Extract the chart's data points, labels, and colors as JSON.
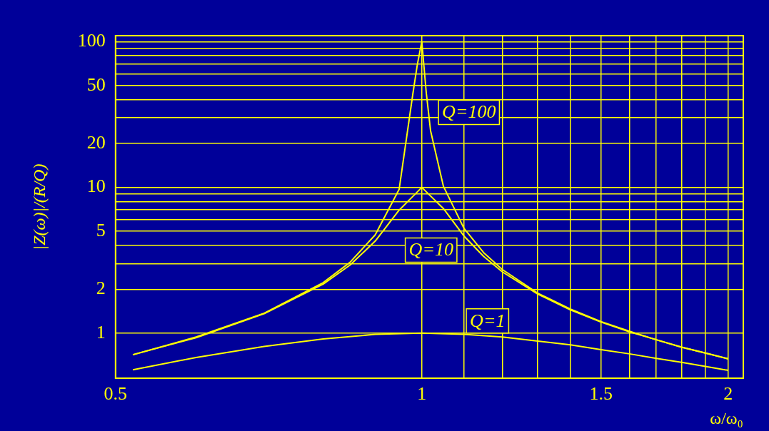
{
  "chart_data": {
    "type": "line",
    "xlabel": "ω/ω₀",
    "ylabel": "|Z(ω)|/(R/Q)",
    "log": "xy",
    "grid": true,
    "legend": false,
    "marker": "none",
    "line_style": "solid",
    "xlim": [
      0.5,
      2.07
    ],
    "ylim": [
      0.49,
      110
    ],
    "xticks": [
      0.5,
      1,
      {
        "value": 1.1,
        "label": null
      },
      {
        "value": 1.2,
        "label": null
      },
      {
        "value": 1.3,
        "label": null
      },
      {
        "value": 1.4,
        "label": null
      },
      1.5,
      {
        "value": 1.6,
        "label": null
      },
      {
        "value": 1.7,
        "label": null
      },
      {
        "value": 1.8,
        "label": null
      },
      {
        "value": 1.9,
        "label": null
      },
      2
    ],
    "yticks": [
      1,
      2,
      {
        "value": 3,
        "label": null
      },
      {
        "value": 4,
        "label": null
      },
      5,
      {
        "value": 6,
        "label": null
      },
      {
        "value": 7,
        "label": null
      },
      {
        "value": 8,
        "label": null
      },
      {
        "value": 9,
        "label": null
      },
      10,
      20,
      {
        "value": 30,
        "label": null
      },
      {
        "value": 40,
        "label": null
      },
      50,
      {
        "value": 60,
        "label": null
      },
      {
        "value": 70,
        "label": null
      },
      {
        "value": 80,
        "label": null
      },
      {
        "value": 90,
        "label": null
      },
      100
    ],
    "series": [
      {
        "name": "Q=1",
        "color": "#ffff00",
        "x": [
          0.52,
          0.6,
          0.7,
          0.8,
          0.9,
          1,
          1.1,
          1.2,
          1.3,
          1.4,
          1.5,
          1.6,
          1.7,
          1.8,
          1.9,
          2
        ],
        "values": [
          0.56,
          0.68,
          0.81,
          0.91,
          0.98,
          1,
          0.98,
          0.94,
          0.88,
          0.83,
          0.77,
          0.72,
          0.67,
          0.63,
          0.59,
          0.555
        ]
      },
      {
        "name": "Q=10",
        "color": "#ffff00",
        "x": [
          0.52,
          0.6,
          0.7,
          0.8,
          0.85,
          0.9,
          0.95,
          1,
          1.05,
          1.1,
          1.15,
          1.2,
          1.3,
          1.4,
          1.5,
          1.6,
          1.7,
          1.8,
          1.9,
          2
        ],
        "values": [
          0.71,
          0.93,
          1.36,
          2.17,
          2.93,
          4.28,
          6.98,
          10,
          7.16,
          4.64,
          3.36,
          2.63,
          1.85,
          1.44,
          1.19,
          1.02,
          0.9,
          0.8,
          0.73,
          0.665
        ]
      },
      {
        "name": "Q=100",
        "color": "#ffff00",
        "x": [
          0.52,
          0.6,
          0.7,
          0.8,
          0.85,
          0.9,
          0.95,
          0.98,
          0.99,
          1,
          1.01,
          1.02,
          1.05,
          1.1,
          1.15,
          1.2,
          1.3,
          1.4,
          1.5,
          1.6,
          1.7,
          1.8,
          1.9,
          2
        ],
        "values": [
          0.71,
          0.94,
          1.37,
          2.22,
          3.06,
          4.73,
          9.7,
          44,
          70,
          100,
          45,
          24.5,
          10.2,
          5.24,
          3.57,
          2.73,
          1.88,
          1.46,
          1.2,
          1.03,
          0.9,
          0.8,
          0.73,
          0.667
        ]
      }
    ]
  }
}
